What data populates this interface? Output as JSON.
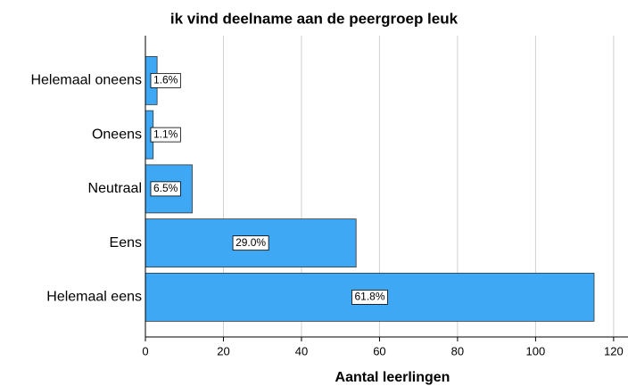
{
  "chart_data": {
    "type": "bar",
    "orientation": "horizontal",
    "title": "ik vind deelname aan de peergroep leuk",
    "x_label": "Aantal leerlingen",
    "categories": [
      "Helemaal oneens",
      "Oneens",
      "Neutraal",
      "Eens",
      "Helemaal eens"
    ],
    "values": [
      3,
      2,
      12,
      54,
      115
    ],
    "data_labels": [
      "1.6%",
      "1.1%",
      "6.5%",
      "29.0%",
      "61.8%"
    ],
    "color": "#3ea8f5",
    "xlim": [
      0,
      123
    ],
    "xticks": [
      0,
      20,
      40,
      60,
      80,
      100,
      120
    ],
    "grid": true
  }
}
